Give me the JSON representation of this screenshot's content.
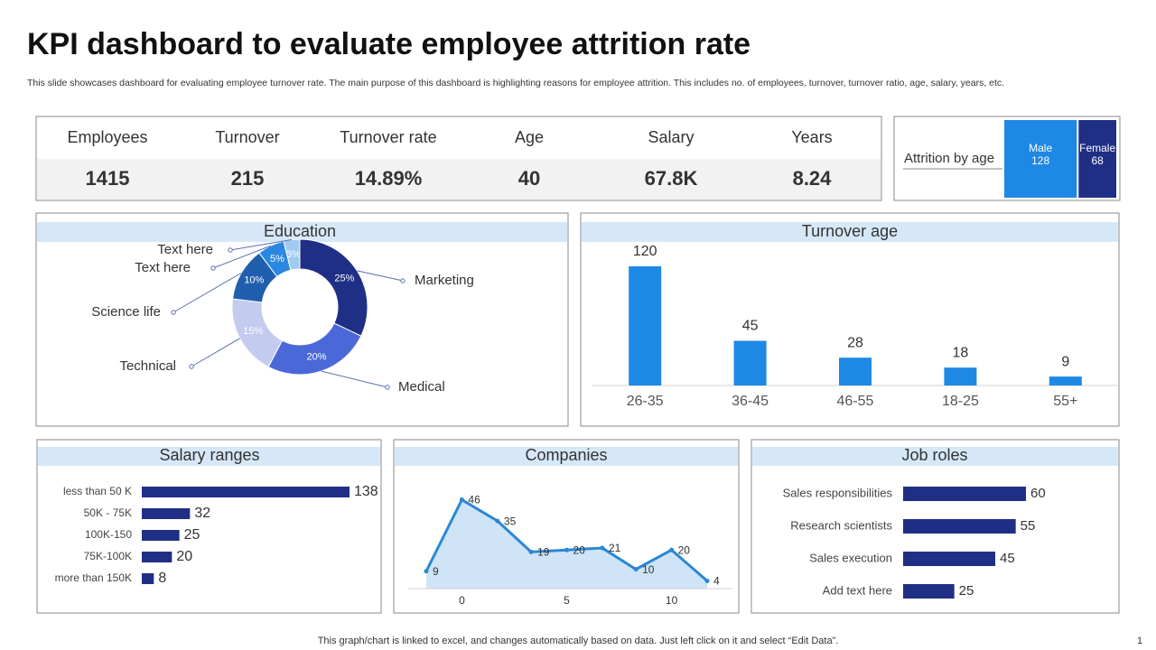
{
  "title": "KPI dashboard to evaluate employee attrition rate",
  "subtitle": "This slide showcases dashboard for evaluating employee turnover rate. The main purpose of this dashboard is highlighting reasons for employee attrition. This includes no. of employees, turnover, turnover ratio, age, salary, years, etc.",
  "kpis": [
    {
      "label": "Employees",
      "value": "1415"
    },
    {
      "label": "Turnover",
      "value": "215"
    },
    {
      "label": "Turnover rate",
      "value": "14.89%"
    },
    {
      "label": "Age",
      "value": "40"
    },
    {
      "label": "Salary",
      "value": "67.8K"
    },
    {
      "label": "Years",
      "value": "8.24"
    }
  ],
  "chart_data": [
    {
      "type": "treemap",
      "title": "Attrition by age",
      "categories": [
        "Male",
        "Female"
      ],
      "values": [
        128,
        68
      ],
      "colors": [
        "#1e88e5",
        "#1f2f86"
      ]
    },
    {
      "type": "donut",
      "title": "Education",
      "categories": [
        "Marketing",
        "Medical",
        "Technical",
        "Science life",
        "Text here",
        "Text here"
      ],
      "values": [
        25,
        20,
        15,
        10,
        5,
        3
      ],
      "value_labels": [
        "25%",
        "20%",
        "15%",
        "10%",
        "5%",
        "3%"
      ],
      "colors": [
        "#1f2f86",
        "#4a68d8",
        "#c3cbef",
        "#1f5fae",
        "#2b88e0",
        "#9fcbf0"
      ]
    },
    {
      "type": "bar",
      "title": "Turnover age",
      "categories": [
        "26-35",
        "36-45",
        "46-55",
        "18-25",
        "55+"
      ],
      "values": [
        120,
        45,
        28,
        18,
        9
      ],
      "color": "#1e88e5"
    },
    {
      "type": "barh",
      "title": "Salary ranges",
      "categories": [
        "less than 50 K",
        "50K - 75K",
        "100K-150",
        "75K-100K",
        "more than 150K"
      ],
      "values": [
        138,
        32,
        25,
        20,
        8
      ],
      "color": "#1f2f86"
    },
    {
      "type": "area",
      "title": "Companies",
      "x": [
        -1.7,
        0,
        1.7,
        3.3,
        5,
        6.7,
        8.3,
        10,
        11.7
      ],
      "values": [
        9,
        46,
        35,
        19,
        20,
        21,
        10,
        20,
        4
      ],
      "xlim": [
        -2,
        12
      ],
      "xticks": [
        0,
        5,
        10
      ],
      "ylim": [
        0,
        50
      ],
      "color": "#2a87d6",
      "fill": "#cfe4f7"
    },
    {
      "type": "barh",
      "title": "Job roles",
      "categories": [
        "Sales responsibilities",
        "Research scientists",
        "Sales execution",
        "Add text here"
      ],
      "values": [
        60,
        55,
        45,
        25
      ],
      "color": "#1f2f86"
    }
  ],
  "footer": "This graph/chart is linked to excel, and changes automatically based on data. Just left click on it and select “Edit Data”.",
  "page_number": "1"
}
